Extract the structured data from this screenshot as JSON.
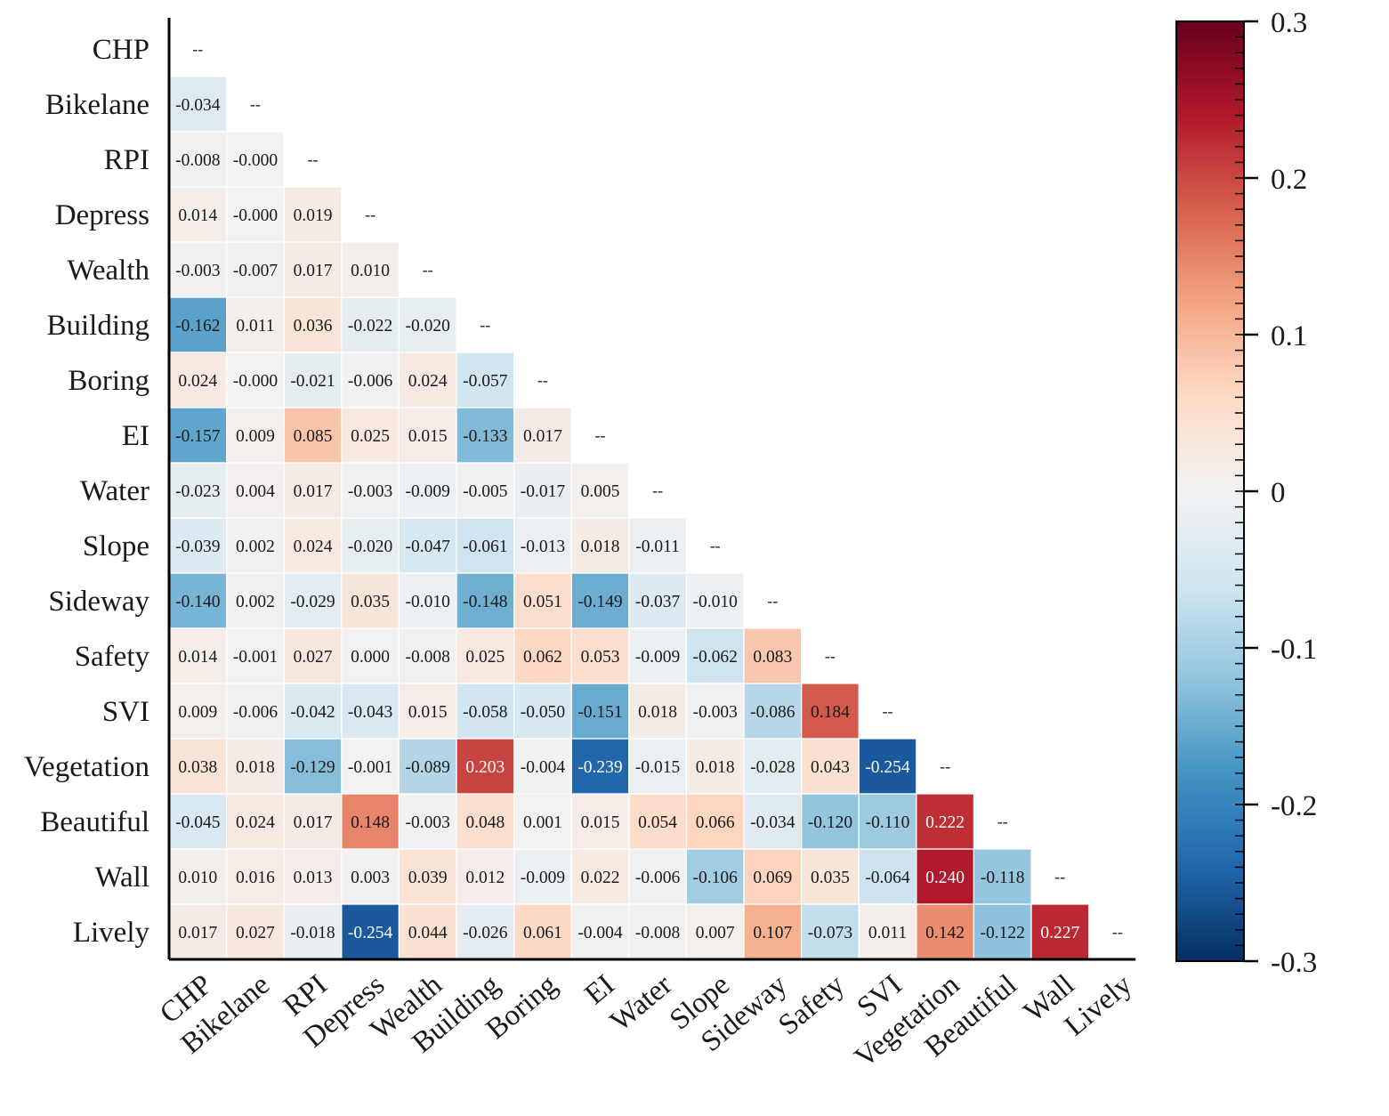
{
  "chart_data": {
    "type": "heatmap",
    "title": "",
    "variables": [
      "CHP",
      "Bikelane",
      "RPI",
      "Depress",
      "Wealth",
      "Building",
      "Boring",
      "EI",
      "Water",
      "Slope",
      "Sideway",
      "Safety",
      "SVI",
      "Vegetation",
      "Beautiful",
      "Wall",
      "Lively"
    ],
    "diagonal_label": "--",
    "lower_triangle": [
      [],
      [
        "-0.034"
      ],
      [
        "-0.008",
        "-0.000"
      ],
      [
        "0.014",
        "-0.000",
        "0.019"
      ],
      [
        "-0.003",
        "-0.007",
        "0.017",
        "0.010"
      ],
      [
        "-0.162",
        "0.011",
        "0.036",
        "-0.022",
        "-0.020"
      ],
      [
        "0.024",
        "-0.000",
        "-0.021",
        "-0.006",
        "0.024",
        "-0.057"
      ],
      [
        "-0.157",
        "0.009",
        "0.085",
        "0.025",
        "0.015",
        "-0.133",
        "0.017"
      ],
      [
        "-0.023",
        "0.004",
        "0.017",
        "-0.003",
        "-0.009",
        "-0.005",
        "-0.017",
        "0.005"
      ],
      [
        "-0.039",
        "0.002",
        "0.024",
        "-0.020",
        "-0.047",
        "-0.061",
        "-0.013",
        "0.018",
        "-0.011"
      ],
      [
        "-0.140",
        "0.002",
        "-0.029",
        "0.035",
        "-0.010",
        "-0.148",
        "0.051",
        "-0.149",
        "-0.037",
        "-0.010"
      ],
      [
        "0.014",
        "-0.001",
        "0.027",
        "0.000",
        "-0.008",
        "0.025",
        "0.062",
        "0.053",
        "-0.009",
        "-0.062",
        "0.083"
      ],
      [
        "0.009",
        "-0.006",
        "-0.042",
        "-0.043",
        "0.015",
        "-0.058",
        "-0.050",
        "-0.151",
        "0.018",
        "-0.003",
        "-0.086",
        "0.184"
      ],
      [
        "0.038",
        "0.018",
        "-0.129",
        "-0.001",
        "-0.089",
        "0.203",
        "-0.004",
        "-0.239",
        "-0.015",
        "0.018",
        "-0.028",
        "0.043",
        "-0.254"
      ],
      [
        "-0.045",
        "0.024",
        "0.017",
        "0.148",
        "-0.003",
        "0.048",
        "0.001",
        "0.015",
        "0.054",
        "0.066",
        "-0.034",
        "-0.120",
        "-0.110",
        "0.222"
      ],
      [
        "0.010",
        "0.016",
        "0.013",
        "0.003",
        "0.039",
        "0.012",
        "-0.009",
        "0.022",
        "-0.006",
        "-0.106",
        "0.069",
        "0.035",
        "-0.064",
        "0.240",
        "-0.118"
      ],
      [
        "0.017",
        "0.027",
        "-0.018",
        "-0.254",
        "0.044",
        "-0.026",
        "0.061",
        "-0.004",
        "-0.008",
        "0.007",
        "0.107",
        "-0.073",
        "0.011",
        "0.142",
        "-0.122",
        "0.227"
      ]
    ],
    "colorbar": {
      "range": [
        -0.3,
        0.3
      ],
      "ticks": [
        "0.3",
        "0.2",
        "0.1",
        "0",
        "-0.1",
        "-0.2",
        "-0.3"
      ],
      "colormap": [
        "#053061",
        "#2166ac",
        "#4393c3",
        "#92c5de",
        "#d1e5f0",
        "#f2f2f2",
        "#fddbc7",
        "#f4a582",
        "#d6604d",
        "#b2182b",
        "#67001f"
      ]
    }
  }
}
